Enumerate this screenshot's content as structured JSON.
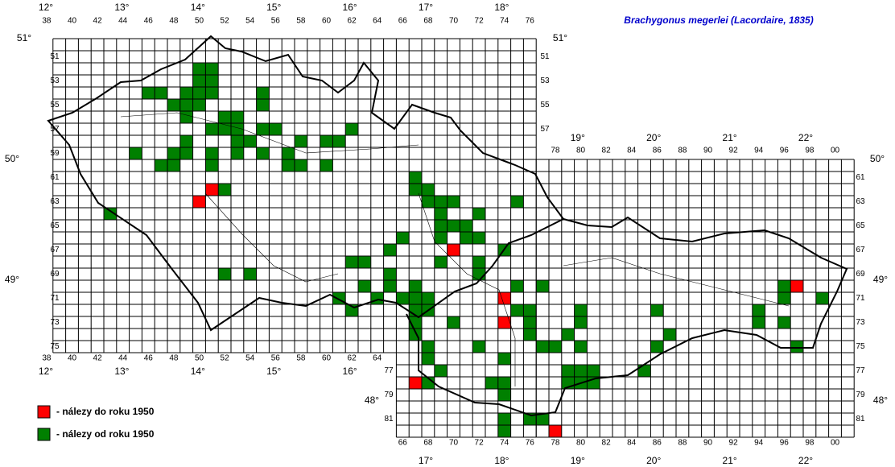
{
  "map_data": {
    "title": "Brachygonus megerlei (Lacordaire, 1835)",
    "legend": [
      {
        "label": "- nálezy do roku 1950",
        "color": "#ff0000",
        "cells": [
          [
            51,
            62
          ],
          [
            50,
            63
          ],
          [
            70,
            67
          ],
          [
            74,
            71
          ],
          [
            97,
            70
          ],
          [
            74,
            73
          ],
          [
            67,
            78
          ],
          [
            78,
            82
          ]
        ]
      },
      {
        "label": "- nálezy od roku 1950",
        "color": "#008000",
        "cells": [
          [
            50,
            52
          ],
          [
            51,
            52
          ],
          [
            50,
            53
          ],
          [
            51,
            53
          ],
          [
            46,
            54
          ],
          [
            47,
            54
          ],
          [
            49,
            54
          ],
          [
            50,
            54
          ],
          [
            51,
            54
          ],
          [
            55,
            54
          ],
          [
            48,
            55
          ],
          [
            49,
            55
          ],
          [
            50,
            55
          ],
          [
            55,
            55
          ],
          [
            49,
            56
          ],
          [
            52,
            56
          ],
          [
            53,
            56
          ],
          [
            51,
            57
          ],
          [
            52,
            57
          ],
          [
            53,
            57
          ],
          [
            55,
            57
          ],
          [
            56,
            57
          ],
          [
            62,
            57
          ],
          [
            49,
            58
          ],
          [
            53,
            58
          ],
          [
            54,
            58
          ],
          [
            58,
            58
          ],
          [
            60,
            58
          ],
          [
            61,
            58
          ],
          [
            45,
            59
          ],
          [
            48,
            59
          ],
          [
            49,
            59
          ],
          [
            51,
            59
          ],
          [
            53,
            59
          ],
          [
            55,
            59
          ],
          [
            57,
            59
          ],
          [
            47,
            60
          ],
          [
            48,
            60
          ],
          [
            51,
            60
          ],
          [
            57,
            60
          ],
          [
            58,
            60
          ],
          [
            60,
            60
          ],
          [
            67,
            61
          ],
          [
            52,
            62
          ],
          [
            67,
            62
          ],
          [
            68,
            62
          ],
          [
            68,
            63
          ],
          [
            69,
            63
          ],
          [
            70,
            63
          ],
          [
            75,
            63
          ],
          [
            43,
            64
          ],
          [
            69,
            64
          ],
          [
            72,
            64
          ],
          [
            69,
            65
          ],
          [
            70,
            65
          ],
          [
            71,
            65
          ],
          [
            66,
            66
          ],
          [
            69,
            66
          ],
          [
            71,
            66
          ],
          [
            72,
            66
          ],
          [
            65,
            67
          ],
          [
            74,
            67
          ],
          [
            62,
            68
          ],
          [
            63,
            68
          ],
          [
            69,
            68
          ],
          [
            72,
            68
          ],
          [
            52,
            69
          ],
          [
            54,
            69
          ],
          [
            65,
            69
          ],
          [
            72,
            69
          ],
          [
            63,
            70
          ],
          [
            65,
            70
          ],
          [
            67,
            70
          ],
          [
            75,
            70
          ],
          [
            77,
            70
          ],
          [
            96,
            70
          ],
          [
            61,
            71
          ],
          [
            64,
            71
          ],
          [
            66,
            71
          ],
          [
            67,
            71
          ],
          [
            68,
            71
          ],
          [
            96,
            71
          ],
          [
            99,
            71
          ],
          [
            62,
            72
          ],
          [
            67,
            72
          ],
          [
            68,
            72
          ],
          [
            75,
            72
          ],
          [
            76,
            72
          ],
          [
            80,
            72
          ],
          [
            86,
            72
          ],
          [
            94,
            72
          ],
          [
            67,
            73
          ],
          [
            70,
            73
          ],
          [
            76,
            73
          ],
          [
            80,
            73
          ],
          [
            94,
            73
          ],
          [
            96,
            73
          ],
          [
            67,
            74
          ],
          [
            76,
            74
          ],
          [
            79,
            74
          ],
          [
            87,
            74
          ],
          [
            68,
            75
          ],
          [
            72,
            75
          ],
          [
            77,
            75
          ],
          [
            78,
            75
          ],
          [
            80,
            75
          ],
          [
            86,
            75
          ],
          [
            97,
            75
          ],
          [
            68,
            76
          ],
          [
            74,
            76
          ],
          [
            69,
            77
          ],
          [
            79,
            77
          ],
          [
            80,
            77
          ],
          [
            81,
            77
          ],
          [
            85,
            77
          ],
          [
            68,
            78
          ],
          [
            73,
            78
          ],
          [
            74,
            78
          ],
          [
            79,
            78
          ],
          [
            80,
            78
          ],
          [
            81,
            78
          ],
          [
            74,
            79
          ],
          [
            74,
            81
          ],
          [
            76,
            81
          ],
          [
            77,
            81
          ],
          [
            74,
            82
          ]
        ]
      }
    ],
    "col_labels": {
      "top": [
        "38",
        "40",
        "42",
        "44",
        "46",
        "48",
        "50",
        "52",
        "54",
        "56",
        "58",
        "60",
        "62",
        "64",
        "66",
        "68",
        "70",
        "72",
        "74",
        "76"
      ],
      "top_right": [
        "78",
        "80",
        "82",
        "84",
        "86",
        "88",
        "90",
        "92",
        "94",
        "96",
        "98",
        "00"
      ],
      "bottom_left": [
        "38",
        "40",
        "42",
        "44",
        "46",
        "48",
        "50",
        "52",
        "54",
        "56",
        "58",
        "60",
        "62",
        "64"
      ],
      "bottom": [
        "66",
        "68",
        "70",
        "72",
        "74",
        "76",
        "78",
        "80",
        "82",
        "84",
        "86",
        "88",
        "90",
        "92",
        "94",
        "96",
        "98",
        "00"
      ]
    },
    "row_labels": {
      "left": [
        "51",
        "53",
        "55",
        "57",
        "59",
        "61",
        "63",
        "65",
        "67",
        "69",
        "71",
        "73",
        "75"
      ],
      "right_upper": [
        "51",
        "53",
        "55",
        "57"
      ],
      "right_lower": [
        "61",
        "63",
        "65",
        "67",
        "69",
        "71",
        "73",
        "75",
        "77",
        "79",
        "81"
      ],
      "bottom_left": [
        "77",
        "79",
        "81"
      ]
    },
    "lon_labels": {
      "top": [
        "12°",
        "13°",
        "14°",
        "15°",
        "16°",
        "17°",
        "18°"
      ],
      "top_right": [
        "19°",
        "20°",
        "21°",
        "22°"
      ],
      "bottom_left": [
        "12°",
        "13°",
        "14°",
        "15°",
        "16°"
      ],
      "bottom": [
        "17°",
        "18°",
        "19°",
        "20°",
        "21°",
        "22°"
      ]
    },
    "lat_labels": {
      "left": [
        "51°",
        "50°",
        "49°",
        "48°"
      ],
      "right": [
        "51°",
        "50°",
        "49°",
        "48°"
      ]
    }
  }
}
